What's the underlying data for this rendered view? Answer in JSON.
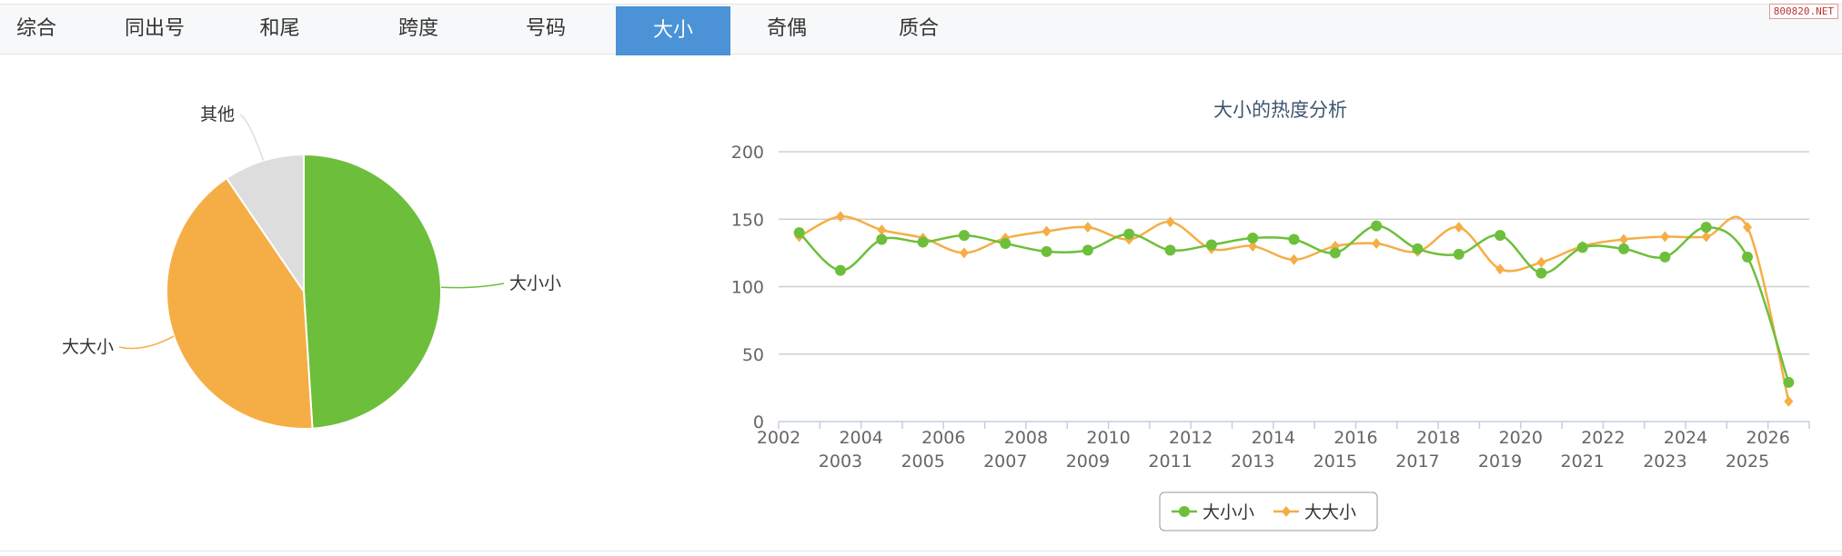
{
  "tabs": [
    {
      "label": "综合"
    },
    {
      "label": "同出号"
    },
    {
      "label": "和尾"
    },
    {
      "label": "跨度"
    },
    {
      "label": "号码"
    },
    {
      "label": "大小",
      "active": true
    },
    {
      "label": "奇偶"
    },
    {
      "label": "质合"
    }
  ],
  "watermark": "800820.NET",
  "chart_data": [
    {
      "type": "pie",
      "title": "",
      "slices": [
        {
          "name": "大小小",
          "value": 49,
          "color": "#6dbf3b"
        },
        {
          "name": "大大小",
          "value": 41.5,
          "color": "#f5ae45"
        },
        {
          "name": "其他",
          "value": 9.5,
          "color": "#dddddd"
        }
      ]
    },
    {
      "type": "line",
      "title": "大小的热度分析",
      "xlabel": "",
      "ylabel": "",
      "ylim": [
        0,
        200
      ],
      "yticks": [
        0,
        50,
        100,
        150,
        200
      ],
      "grid": true,
      "legend": "bottom-center",
      "categories": [
        "2002",
        "2003",
        "2004",
        "2005",
        "2006",
        "2007",
        "2008",
        "2009",
        "2010",
        "2011",
        "2012",
        "2013",
        "2014",
        "2015",
        "2016",
        "2017",
        "2018",
        "2019",
        "2020",
        "2021",
        "2022",
        "2023",
        "2024",
        "2025",
        "2026"
      ],
      "series": [
        {
          "name": "大小小",
          "color": "#6dbf3b",
          "marker": "circle",
          "values": [
            140,
            112,
            135,
            133,
            138,
            132,
            126,
            127,
            139,
            127,
            131,
            136,
            135,
            125,
            145,
            128,
            124,
            138,
            110,
            129,
            128,
            122,
            144,
            122,
            29
          ]
        },
        {
          "name": "大大小",
          "color": "#f5ae45",
          "marker": "diamond",
          "values": [
            137,
            152,
            142,
            136,
            125,
            136,
            141,
            144,
            135,
            148,
            128,
            130,
            120,
            130,
            132,
            126,
            144,
            113,
            118,
            130,
            135,
            137,
            137,
            144,
            15
          ]
        }
      ]
    }
  ]
}
